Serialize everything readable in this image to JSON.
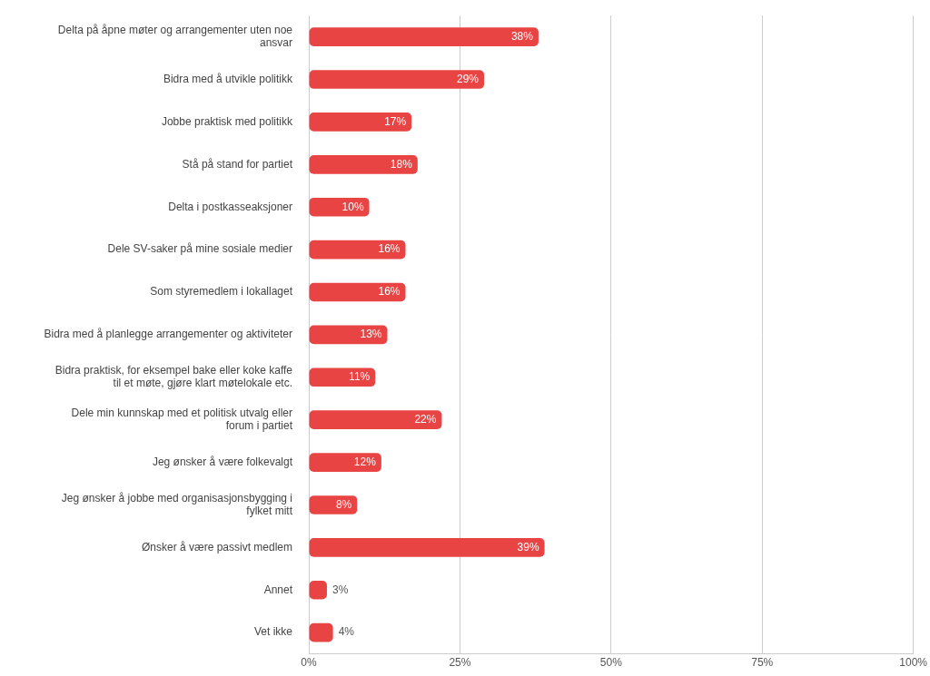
{
  "chart_data": {
    "type": "bar",
    "orientation": "horizontal",
    "categories": [
      "Delta på åpne møter og arrangementer uten noe ansvar",
      "Bidra med å utvikle politikk",
      "Jobbe praktisk med politikk",
      "Stå på stand for partiet",
      "Delta i postkasseaksjoner",
      "Dele SV-saker på mine sosiale medier",
      "Som styremedlem i lokallaget",
      "Bidra med å planlegge arrangementer og aktiviteter",
      "Bidra praktisk, for eksempel bake eller koke kaffe til et møte, gjøre klart møtelokale etc.",
      "Dele min kunnskap med et politisk utvalg eller forum i partiet",
      "Jeg ønsker å være folkevalgt",
      "Jeg ønsker å jobbe med organisasjonsbygging i fylket mitt",
      "Ønsker å være passivt medlem",
      "Annet",
      "Vet ikke"
    ],
    "values": [
      38,
      29,
      17,
      18,
      10,
      16,
      16,
      13,
      11,
      22,
      12,
      8,
      39,
      3,
      4
    ],
    "value_labels": [
      "38%",
      "29%",
      "17%",
      "18%",
      "10%",
      "16%",
      "16%",
      "13%",
      "11%",
      "22%",
      "12%",
      "8%",
      "39%",
      "3%",
      "4%"
    ],
    "color": "#e94444",
    "xlim": [
      0,
      100
    ],
    "xticks": [
      {
        "value": 0,
        "label": "0%"
      },
      {
        "value": 25,
        "label": "25%"
      },
      {
        "value": 50,
        "label": "50%"
      },
      {
        "value": 75,
        "label": "75%"
      },
      {
        "value": 100,
        "label": "100%"
      }
    ],
    "grid": true,
    "data_labels": true
  }
}
